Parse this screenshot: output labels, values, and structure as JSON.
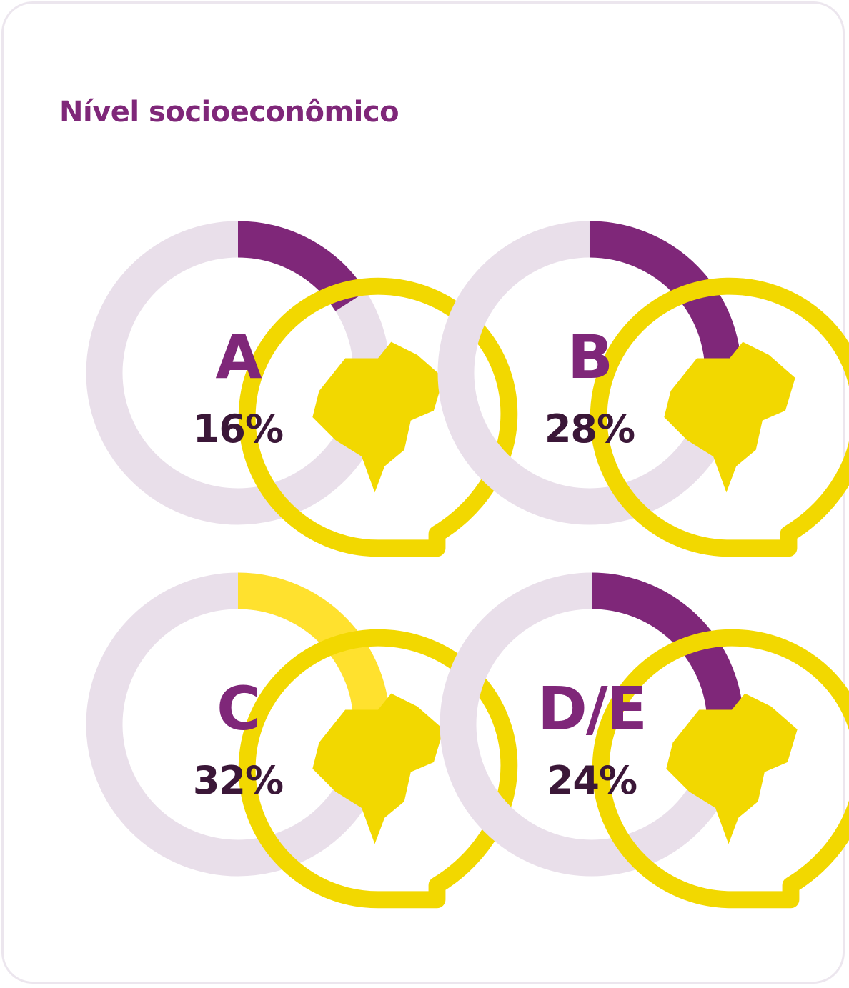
{
  "title": "Nível socioeconômico",
  "colors": {
    "primary": "#7f2779",
    "highlight": "#ffe12e",
    "track": "#e9dfea",
    "value_text": "#3b1738",
    "icon": "#f2d800"
  },
  "icons": {
    "region_marker": "brazil-map-pin-icon"
  },
  "chart_data": [
    {
      "type": "pie",
      "category": "A",
      "value": 16,
      "value_label": "16%",
      "color": "#7f2779"
    },
    {
      "type": "pie",
      "category": "B",
      "value": 28,
      "value_label": "28%",
      "color": "#7f2779"
    },
    {
      "type": "pie",
      "category": "C",
      "value": 32,
      "value_label": "32%",
      "color": "#ffe12e"
    },
    {
      "type": "pie",
      "category": "D/E",
      "value": 24,
      "value_label": "24%",
      "color": "#7f2779"
    }
  ]
}
